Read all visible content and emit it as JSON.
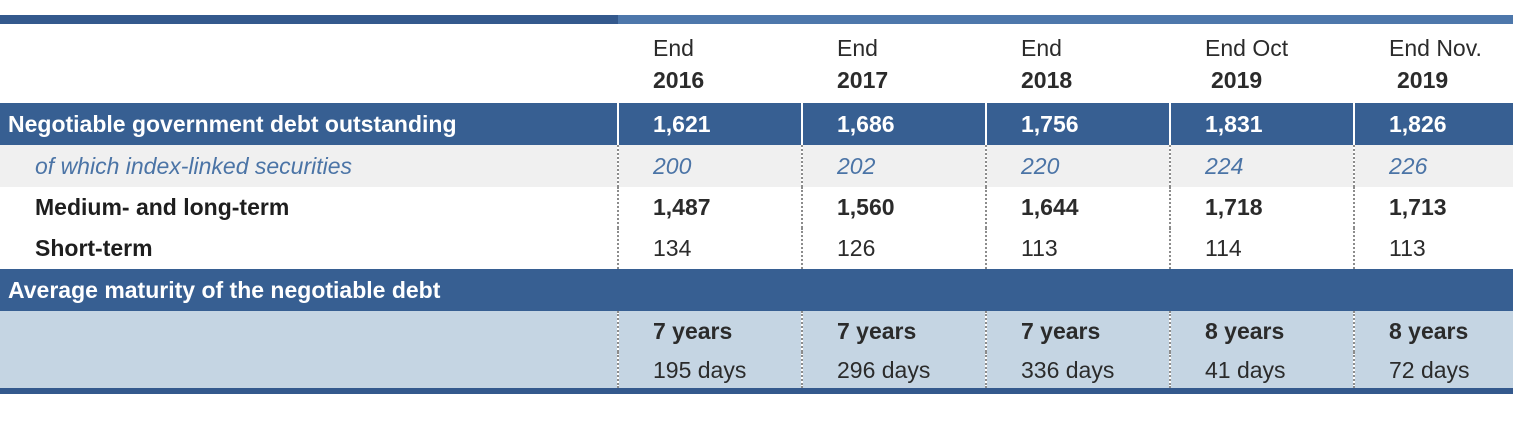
{
  "columns": [
    {
      "line1": "End",
      "line2": "2016"
    },
    {
      "line1": "End",
      "line2": "2017"
    },
    {
      "line1": "End",
      "line2": "2018"
    },
    {
      "line1": "End Oct",
      "line2": "2019"
    },
    {
      "line1": "End Nov.",
      "line2": "2019"
    }
  ],
  "rows": {
    "negotiable": {
      "label": "Negotiable government debt outstanding",
      "values": [
        "1,621",
        "1,686",
        "1,756",
        "1,831",
        "1,826"
      ]
    },
    "index_linked": {
      "label": "of which index-linked securities",
      "values": [
        "200",
        "202",
        "220",
        "224",
        "226"
      ]
    },
    "medium_long": {
      "label": "Medium- and long-term",
      "values": [
        "1,487",
        "1,560",
        "1,644",
        "1,718",
        "1,713"
      ]
    },
    "short_term": {
      "label": "Short-term",
      "values": [
        "134",
        "126",
        "113",
        "114",
        "113"
      ]
    },
    "avg_maturity": {
      "label": "Average maturity of the negotiable debt",
      "years": [
        "7 years",
        "7 years",
        "7 years",
        "8 years",
        "8 years"
      ],
      "days": [
        "195 days",
        "296 days",
        "336 days",
        "41 days",
        "72 days"
      ]
    }
  },
  "colors": {
    "band_blue": "#375f92",
    "rule_dark": "#34598d",
    "rule_light": "#4d77ab",
    "index_text": "#4b74a6",
    "index_bg": "#f0f0f0",
    "maturity_bg": "#c5d5e3"
  }
}
